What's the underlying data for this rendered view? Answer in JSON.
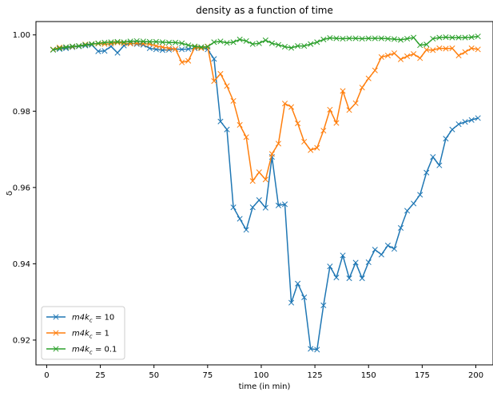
{
  "chart_data": {
    "type": "line",
    "title": "density as a function of time",
    "xlabel": "time (in min)",
    "ylabel": "δ",
    "xlim": [
      -5,
      208
    ],
    "ylim": [
      0.9135,
      1.0035
    ],
    "xticks": [
      0,
      25,
      50,
      75,
      100,
      125,
      150,
      175,
      200
    ],
    "yticks": [
      0.92,
      0.94,
      0.96,
      0.98,
      1.0
    ],
    "ytick_labels": [
      "0.92",
      "0.94",
      "0.96",
      "0.98",
      "1.00"
    ],
    "legend_position": "lower-left",
    "grid": false,
    "marker": "x",
    "x": [
      3,
      6,
      9,
      12,
      15,
      18,
      21,
      24,
      27,
      30,
      33,
      36,
      39,
      42,
      45,
      48,
      51,
      54,
      57,
      60,
      63,
      66,
      69,
      72,
      75,
      78,
      81,
      84,
      87,
      90,
      93,
      96,
      99,
      102,
      105,
      108,
      111,
      114,
      117,
      120,
      123,
      126,
      129,
      132,
      135,
      138,
      141,
      144,
      147,
      150,
      153,
      156,
      159,
      162,
      165,
      168,
      171,
      174,
      177,
      180,
      183,
      186,
      189,
      192,
      195,
      198,
      201
    ],
    "series": [
      {
        "name": "m4k_c = 10",
        "legend_parts": [
          "m4k",
          "c",
          " = 10"
        ],
        "color": "#1f77b4",
        "values": [
          0.9961,
          0.9963,
          0.9965,
          0.9968,
          0.997,
          0.9972,
          0.9974,
          0.9957,
          0.9958,
          0.997,
          0.9953,
          0.9972,
          0.9979,
          0.9976,
          0.9974,
          0.9965,
          0.9962,
          0.996,
          0.9961,
          0.9963,
          0.9962,
          0.9963,
          0.9965,
          0.9967,
          0.9962,
          0.9937,
          0.9773,
          0.9752,
          0.9548,
          0.9518,
          0.9489,
          0.9548,
          0.9567,
          0.9547,
          0.968,
          0.9553,
          0.9556,
          0.9298,
          0.9348,
          0.9312,
          0.9177,
          0.9175,
          0.9291,
          0.9393,
          0.9364,
          0.9422,
          0.9362,
          0.9403,
          0.9362,
          0.9404,
          0.9437,
          0.9424,
          0.9448,
          0.9439,
          0.9494,
          0.9539,
          0.9558,
          0.9581,
          0.9639,
          0.968,
          0.9658,
          0.9728,
          0.9752,
          0.9766,
          0.9772,
          0.9777,
          0.9782
        ]
      },
      {
        "name": "m4k_c = 1",
        "legend_parts": [
          "m4k",
          "c",
          " = 1"
        ],
        "color": "#ff7f0e",
        "values": [
          0.9962,
          0.9967,
          0.9968,
          0.9969,
          0.9971,
          0.9975,
          0.9976,
          0.9977,
          0.9976,
          0.9977,
          0.998,
          0.9978,
          0.9977,
          0.9978,
          0.9977,
          0.9976,
          0.9971,
          0.9968,
          0.9965,
          0.9963,
          0.9928,
          0.9932,
          0.9967,
          0.9965,
          0.997,
          0.9879,
          0.9898,
          0.9866,
          0.9827,
          0.9764,
          0.9732,
          0.9617,
          0.964,
          0.9621,
          0.9688,
          0.9715,
          0.982,
          0.9811,
          0.9768,
          0.972,
          0.9698,
          0.9704,
          0.9749,
          0.9804,
          0.9769,
          0.9853,
          0.9803,
          0.9821,
          0.9862,
          0.9886,
          0.9907,
          0.9942,
          0.9946,
          0.9952,
          0.9936,
          0.9944,
          0.995,
          0.9939,
          0.9961,
          0.996,
          0.9965,
          0.9964,
          0.9965,
          0.9946,
          0.9955,
          0.9965,
          0.9962
        ]
      },
      {
        "name": "m4k_c = 0.1",
        "legend_parts": [
          "m4k",
          "c",
          " = 0.1"
        ],
        "color": "#2ca02c",
        "values": [
          0.9961,
          0.9965,
          0.9968,
          0.997,
          0.9971,
          0.9974,
          0.9976,
          0.9978,
          0.998,
          0.9981,
          0.9982,
          0.9981,
          0.9983,
          0.9984,
          0.9983,
          0.9982,
          0.9982,
          0.9981,
          0.998,
          0.998,
          0.9978,
          0.9973,
          0.997,
          0.9968,
          0.9969,
          0.9981,
          0.9983,
          0.9979,
          0.9981,
          0.9988,
          0.9984,
          0.9976,
          0.9978,
          0.9986,
          0.9978,
          0.9974,
          0.9969,
          0.9966,
          0.9971,
          0.9971,
          0.9976,
          0.9981,
          0.9988,
          0.9992,
          0.9991,
          0.999,
          0.9991,
          0.9991,
          0.999,
          0.9991,
          0.9991,
          0.9991,
          0.999,
          0.9989,
          0.9987,
          0.999,
          0.9993,
          0.9973,
          0.9975,
          0.999,
          0.9993,
          0.9994,
          0.9993,
          0.9993,
          0.9993,
          0.9994,
          0.9996
        ]
      }
    ]
  }
}
